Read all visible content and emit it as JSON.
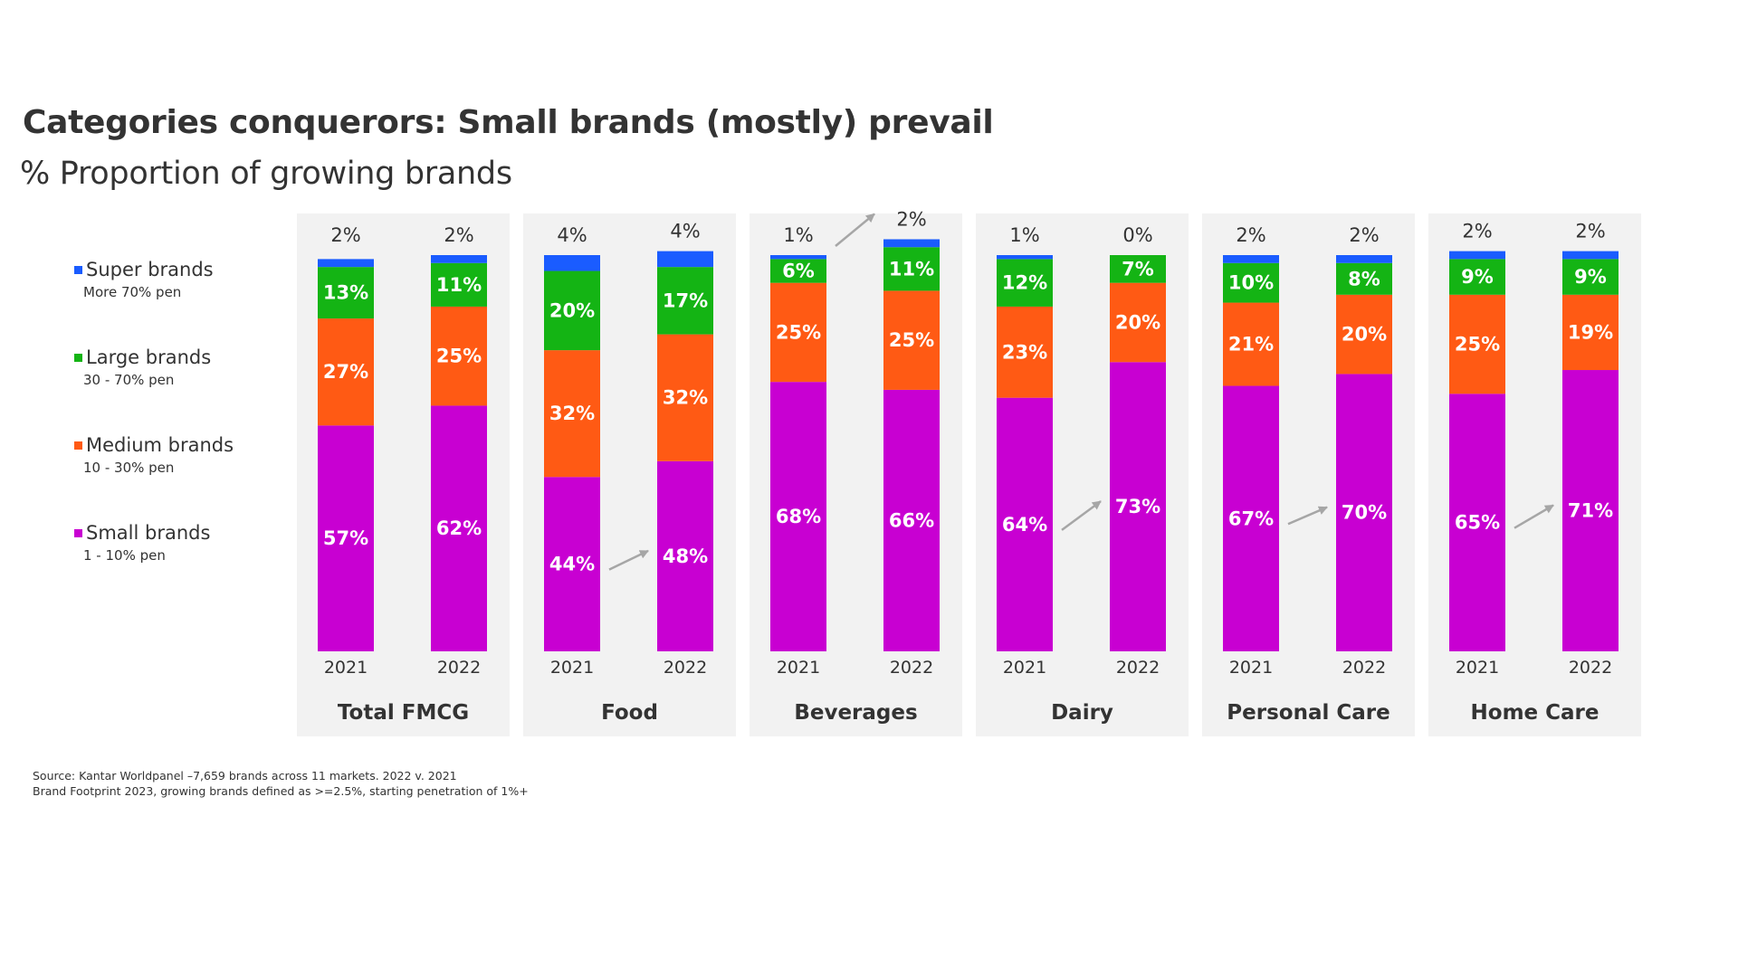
{
  "title": "Categories conquerors: Small brands (mostly) prevail",
  "subtitle": "% Proportion of growing brands",
  "legend": [
    {
      "name": "Super brands",
      "desc": "More 70% pen",
      "color": "#1a5cff"
    },
    {
      "name": "Large brands",
      "desc": "30 - 70% pen",
      "color": "#14b414"
    },
    {
      "name": "Medium brands",
      "desc": "10 - 30% pen",
      "color": "#ff5a14"
    },
    {
      "name": "Small brands",
      "desc": "1 - 10% pen",
      "color": "#c800d2"
    }
  ],
  "chart_data": {
    "type": "bar",
    "stacked": true,
    "ylim": [
      0,
      100
    ],
    "grid": false,
    "legend_position": "left",
    "series_order": [
      "Small brands",
      "Medium brands",
      "Large brands",
      "Super brands"
    ],
    "colors": {
      "Small brands": "#c800d2",
      "Medium brands": "#ff5a14",
      "Large brands": "#14b414",
      "Super brands": "#1a5cff"
    },
    "groups": [
      {
        "name": "Total FMCG",
        "bars": [
          {
            "year": "2021",
            "values": {
              "Small brands": 57,
              "Medium brands": 27,
              "Large brands": 13,
              "Super brands": 2
            }
          },
          {
            "year": "2022",
            "values": {
              "Small brands": 62,
              "Medium brands": 25,
              "Large brands": 11,
              "Super brands": 2
            }
          }
        ],
        "arrow": false
      },
      {
        "name": "Food",
        "bars": [
          {
            "year": "2021",
            "values": {
              "Small brands": 44,
              "Medium brands": 32,
              "Large brands": 20,
              "Super brands": 4
            }
          },
          {
            "year": "2022",
            "values": {
              "Small brands": 48,
              "Medium brands": 32,
              "Large brands": 17,
              "Super brands": 4
            }
          }
        ],
        "arrow": true,
        "arrow_on": "Small brands"
      },
      {
        "name": "Beverages",
        "bars": [
          {
            "year": "2021",
            "values": {
              "Small brands": 68,
              "Medium brands": 25,
              "Large brands": 6,
              "Super brands": 1
            }
          },
          {
            "year": "2022",
            "values": {
              "Small brands": 66,
              "Medium brands": 25,
              "Large brands": 11,
              "Super brands": 2
            }
          }
        ],
        "arrow": true,
        "arrow_on": "Super brands"
      },
      {
        "name": "Dairy",
        "bars": [
          {
            "year": "2021",
            "values": {
              "Small brands": 64,
              "Medium brands": 23,
              "Large brands": 12,
              "Super brands": 1
            }
          },
          {
            "year": "2022",
            "values": {
              "Small brands": 73,
              "Medium brands": 20,
              "Large brands": 7,
              "Super brands": 0
            }
          }
        ],
        "arrow": true,
        "arrow_on": "Small brands"
      },
      {
        "name": "Personal Care",
        "bars": [
          {
            "year": "2021",
            "values": {
              "Small brands": 67,
              "Medium brands": 21,
              "Large brands": 10,
              "Super brands": 2
            }
          },
          {
            "year": "2022",
            "values": {
              "Small brands": 70,
              "Medium brands": 20,
              "Large brands": 8,
              "Super brands": 2
            }
          }
        ],
        "arrow": true,
        "arrow_on": "Small brands"
      },
      {
        "name": "Home Care",
        "bars": [
          {
            "year": "2021",
            "values": {
              "Small brands": 65,
              "Medium brands": 25,
              "Large brands": 9,
              "Super brands": 2
            }
          },
          {
            "year": "2022",
            "values": {
              "Small brands": 71,
              "Medium brands": 19,
              "Large brands": 9,
              "Super brands": 2
            }
          }
        ],
        "arrow": true,
        "arrow_on": "Small brands"
      }
    ]
  },
  "source": {
    "line1": "Source: Kantar Worldpanel –7,659  brands across 11 markets. 2022 v. 2021",
    "line2": "Brand Footprint 2023, growing brands defined as >=2.5%, starting penetration of 1%+"
  }
}
